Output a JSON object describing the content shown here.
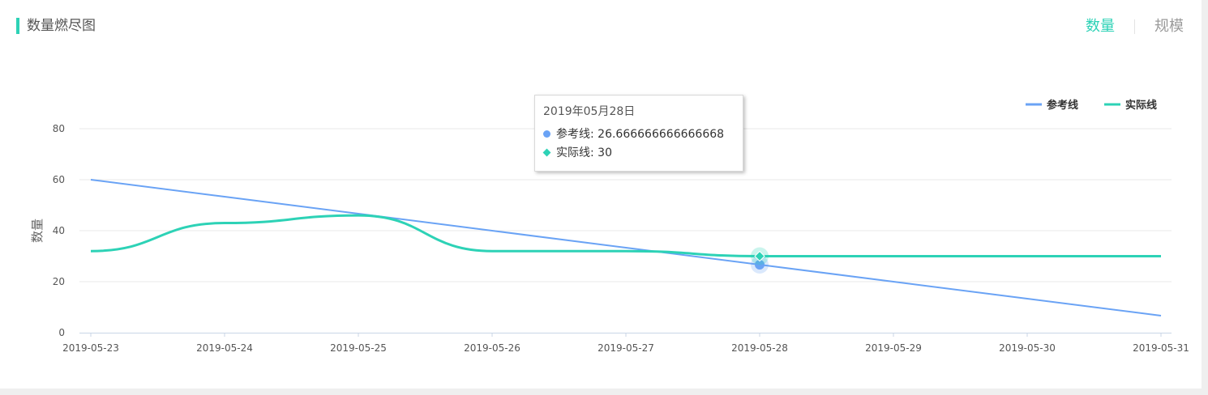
{
  "header": {
    "title": "数量燃尽图",
    "tabs": [
      {
        "label": "数量",
        "active": true
      },
      {
        "label": "规模",
        "active": false
      }
    ]
  },
  "colors": {
    "accent": "#2dd2b6",
    "reference": "#6aa3f5",
    "actual": "#2dd2b6"
  },
  "tooltip": {
    "title": "2019年05月28日",
    "rows": [
      {
        "series": "参考线",
        "text": "参考线: 26.666666666666668",
        "color": "#6aa3f5",
        "marker": "circle"
      },
      {
        "series": "实际线",
        "text": "实际线: 30",
        "color": "#2dd2b6",
        "marker": "diamond"
      }
    ]
  },
  "chart_data": {
    "type": "line",
    "title": "",
    "xlabel": "",
    "ylabel": "数量",
    "categories": [
      "2019-05-23",
      "2019-05-24",
      "2019-05-25",
      "2019-05-26",
      "2019-05-27",
      "2019-05-28",
      "2019-05-29",
      "2019-05-30",
      "2019-05-31"
    ],
    "ylim": [
      0,
      80
    ],
    "yticks": [
      0,
      20,
      40,
      60,
      80
    ],
    "grid": true,
    "legend_position": "top-right",
    "highlight_category": "2019-05-28",
    "series": [
      {
        "name": "参考线",
        "color": "#6aa3f5",
        "smooth": false,
        "values": [
          60,
          53.333333333333336,
          46.666666666666664,
          40,
          33.333333333333336,
          26.666666666666668,
          20,
          13.333333333333334,
          6.666666666666667
        ]
      },
      {
        "name": "实际线",
        "color": "#2dd2b6",
        "smooth": true,
        "values": [
          32,
          43,
          46,
          32,
          32,
          30,
          30,
          30,
          30
        ]
      }
    ]
  }
}
